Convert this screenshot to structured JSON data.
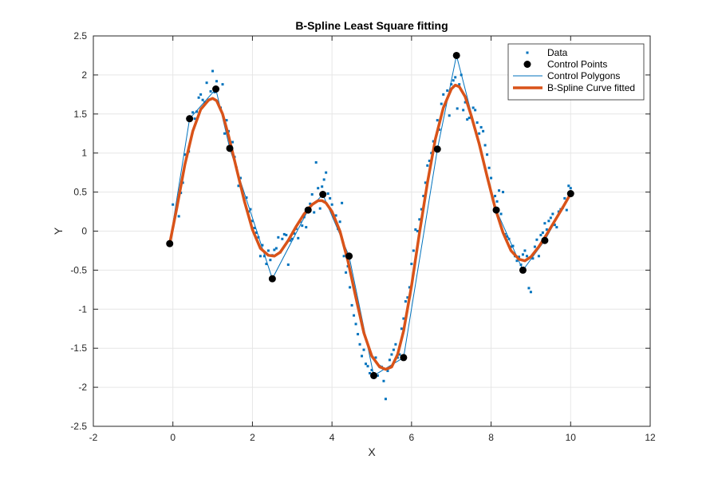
{
  "chart_data": {
    "type": "scatter",
    "title": "B-Spline Least Square fitting",
    "xlabel": "X",
    "ylabel": "Y",
    "xlim": [
      -2,
      12
    ],
    "ylim": [
      -2.5,
      2.5
    ],
    "xticks": [
      -2,
      0,
      2,
      4,
      6,
      8,
      10,
      12
    ],
    "yticks": [
      -2.5,
      -2,
      -1.5,
      -1,
      -0.5,
      0,
      0.5,
      1,
      1.5,
      2,
      2.5
    ],
    "xtick_labels": [
      "-2",
      "0",
      "2",
      "4",
      "6",
      "8",
      "10",
      "12"
    ],
    "ytick_labels": [
      "-2.5",
      "-2",
      "-1.5",
      "-1",
      "-0.5",
      "0",
      "0.5",
      "1",
      "1.5",
      "2",
      "2.5"
    ],
    "grid": true,
    "legend_position": "top-right",
    "colors": {
      "data": "#0072BD",
      "control_points": "#000000",
      "control_polygon": "#0072BD",
      "fitted_curve": "#D95319",
      "grid": "#e6e6e6",
      "axes": "#262626"
    },
    "series": [
      {
        "name": "Data",
        "kind": "scatter",
        "points": [
          [
            0.0,
            0.34
          ],
          [
            0.1,
            0.33
          ],
          [
            0.15,
            0.19
          ],
          [
            0.2,
            0.49
          ],
          [
            0.25,
            0.62
          ],
          [
            0.3,
            0.98
          ],
          [
            0.35,
            0.96
          ],
          [
            0.4,
            1.02
          ],
          [
            0.45,
            1.45
          ],
          [
            0.5,
            1.52
          ],
          [
            0.55,
            1.44
          ],
          [
            0.6,
            1.53
          ],
          [
            0.65,
            1.71
          ],
          [
            0.7,
            1.75
          ],
          [
            0.75,
            1.68
          ],
          [
            0.8,
            1.65
          ],
          [
            0.85,
            1.9
          ],
          [
            0.9,
            1.68
          ],
          [
            0.95,
            1.79
          ],
          [
            1.0,
            2.05
          ],
          [
            1.05,
            1.78
          ],
          [
            1.1,
            1.92
          ],
          [
            1.15,
            1.62
          ],
          [
            1.2,
            1.58
          ],
          [
            1.25,
            1.88
          ],
          [
            1.3,
            1.25
          ],
          [
            1.35,
            1.42
          ],
          [
            1.4,
            1.28
          ],
          [
            1.45,
            1.04
          ],
          [
            1.5,
            1.14
          ],
          [
            1.55,
            0.95
          ],
          [
            1.6,
            0.81
          ],
          [
            1.65,
            0.58
          ],
          [
            1.7,
            0.68
          ],
          [
            1.75,
            0.49
          ],
          [
            1.8,
            0.39
          ],
          [
            1.85,
            0.43
          ],
          [
            1.9,
            0.25
          ],
          [
            1.95,
            0.28
          ],
          [
            2.0,
            0.13
          ],
          [
            2.05,
            0.04
          ],
          [
            2.1,
            -0.02
          ],
          [
            2.15,
            -0.08
          ],
          [
            2.2,
            -0.32
          ],
          [
            2.25,
            -0.18
          ],
          [
            2.3,
            -0.32
          ],
          [
            2.35,
            -0.42
          ],
          [
            2.4,
            -0.25
          ],
          [
            2.45,
            -0.37
          ],
          [
            2.5,
            -0.31
          ],
          [
            2.55,
            -0.24
          ],
          [
            2.6,
            -0.22
          ],
          [
            2.65,
            -0.08
          ],
          [
            2.7,
            -0.27
          ],
          [
            2.75,
            -0.1
          ],
          [
            2.8,
            -0.04
          ],
          [
            2.85,
            -0.05
          ],
          [
            2.9,
            -0.43
          ],
          [
            2.95,
            -0.12
          ],
          [
            3.0,
            -0.1
          ],
          [
            3.05,
            -0.03
          ],
          [
            3.1,
            0.03
          ],
          [
            3.15,
            -0.09
          ],
          [
            3.2,
            0.12
          ],
          [
            3.25,
            0.07
          ],
          [
            3.3,
            0.18
          ],
          [
            3.35,
            0.05
          ],
          [
            3.4,
            0.29
          ],
          [
            3.45,
            0.35
          ],
          [
            3.5,
            0.47
          ],
          [
            3.55,
            0.24
          ],
          [
            3.6,
            0.88
          ],
          [
            3.65,
            0.55
          ],
          [
            3.7,
            0.29
          ],
          [
            3.75,
            0.57
          ],
          [
            3.8,
            0.66
          ],
          [
            3.85,
            0.75
          ],
          [
            3.9,
            0.48
          ],
          [
            3.95,
            0.42
          ],
          [
            4.0,
            0.34
          ],
          [
            4.05,
            0.17
          ],
          [
            4.1,
            0.2
          ],
          [
            4.15,
            0.03
          ],
          [
            4.2,
            0.12
          ],
          [
            4.25,
            0.36
          ],
          [
            4.3,
            -0.32
          ],
          [
            4.35,
            -0.53
          ],
          [
            4.4,
            -0.45
          ],
          [
            4.45,
            -0.72
          ],
          [
            4.5,
            -0.95
          ],
          [
            4.55,
            -1.08
          ],
          [
            4.6,
            -1.19
          ],
          [
            4.65,
            -1.32
          ],
          [
            4.7,
            -1.45
          ],
          [
            4.75,
            -1.6
          ],
          [
            4.8,
            -1.52
          ],
          [
            4.85,
            -1.7
          ],
          [
            4.9,
            -1.73
          ],
          [
            4.95,
            -1.82
          ],
          [
            5.0,
            -1.78
          ],
          [
            5.05,
            -1.88
          ],
          [
            5.1,
            -1.62
          ],
          [
            5.15,
            -1.85
          ],
          [
            5.2,
            -1.73
          ],
          [
            5.25,
            -1.74
          ],
          [
            5.3,
            -1.92
          ],
          [
            5.35,
            -2.15
          ],
          [
            5.4,
            -1.79
          ],
          [
            5.45,
            -1.65
          ],
          [
            5.5,
            -1.58
          ],
          [
            5.55,
            -1.52
          ],
          [
            5.6,
            -1.45
          ],
          [
            5.65,
            -1.62
          ],
          [
            5.7,
            -1.58
          ],
          [
            5.75,
            -1.25
          ],
          [
            5.8,
            -1.12
          ],
          [
            5.85,
            -0.9
          ],
          [
            5.9,
            -0.85
          ],
          [
            5.95,
            -0.72
          ],
          [
            6.0,
            -0.42
          ],
          [
            6.05,
            -0.25
          ],
          [
            6.1,
            0.02
          ],
          [
            6.15,
            0.0
          ],
          [
            6.2,
            0.15
          ],
          [
            6.25,
            0.28
          ],
          [
            6.3,
            0.45
          ],
          [
            6.35,
            0.62
          ],
          [
            6.4,
            0.84
          ],
          [
            6.45,
            0.9
          ],
          [
            6.5,
            1.0
          ],
          [
            6.55,
            1.15
          ],
          [
            6.6,
            1.05
          ],
          [
            6.65,
            1.42
          ],
          [
            6.7,
            1.3
          ],
          [
            6.75,
            1.63
          ],
          [
            6.8,
            1.75
          ],
          [
            6.85,
            1.62
          ],
          [
            6.9,
            1.8
          ],
          [
            6.95,
            1.48
          ],
          [
            7.0,
            1.88
          ],
          [
            7.05,
            1.93
          ],
          [
            7.1,
            1.97
          ],
          [
            7.15,
            1.57
          ],
          [
            7.2,
            1.88
          ],
          [
            7.25,
            2.0
          ],
          [
            7.3,
            1.55
          ],
          [
            7.35,
            1.65
          ],
          [
            7.4,
            1.43
          ],
          [
            7.45,
            1.45
          ],
          [
            7.5,
            1.46
          ],
          [
            7.55,
            1.58
          ],
          [
            7.6,
            1.55
          ],
          [
            7.65,
            1.39
          ],
          [
            7.7,
            1.25
          ],
          [
            7.75,
            1.33
          ],
          [
            7.8,
            1.28
          ],
          [
            7.85,
            1.1
          ],
          [
            7.9,
            0.98
          ],
          [
            7.95,
            0.81
          ],
          [
            8.0,
            0.68
          ],
          [
            8.05,
            0.42
          ],
          [
            8.1,
            0.45
          ],
          [
            8.15,
            0.38
          ],
          [
            8.2,
            0.52
          ],
          [
            8.25,
            0.22
          ],
          [
            8.3,
            0.5
          ],
          [
            8.35,
            -0.04
          ],
          [
            8.4,
            -0.07
          ],
          [
            8.45,
            -0.1
          ],
          [
            8.5,
            -0.2
          ],
          [
            8.55,
            -0.19
          ],
          [
            8.6,
            -0.32
          ],
          [
            8.65,
            -0.38
          ],
          [
            8.7,
            -0.33
          ],
          [
            8.75,
            -0.43
          ],
          [
            8.8,
            -0.3
          ],
          [
            8.85,
            -0.25
          ],
          [
            8.9,
            -0.32
          ],
          [
            8.95,
            -0.73
          ],
          [
            9.0,
            -0.78
          ],
          [
            9.05,
            -0.35
          ],
          [
            9.1,
            -0.2
          ],
          [
            9.15,
            -0.11
          ],
          [
            9.2,
            -0.32
          ],
          [
            9.25,
            -0.05
          ],
          [
            9.3,
            -0.02
          ],
          [
            9.35,
            0.1
          ],
          [
            9.4,
            0.02
          ],
          [
            9.45,
            0.13
          ],
          [
            9.5,
            0.17
          ],
          [
            9.55,
            0.22
          ],
          [
            9.6,
            0.08
          ],
          [
            9.65,
            0.05
          ],
          [
            9.7,
            0.25
          ],
          [
            9.75,
            0.28
          ],
          [
            9.8,
            0.3
          ],
          [
            9.85,
            0.42
          ],
          [
            9.9,
            0.27
          ],
          [
            9.95,
            0.58
          ],
          [
            10.0,
            0.55
          ]
        ]
      },
      {
        "name": "Control Points",
        "kind": "markers",
        "points": [
          [
            -0.08,
            -0.16
          ],
          [
            0.42,
            1.44
          ],
          [
            1.08,
            1.82
          ],
          [
            1.43,
            1.06
          ],
          [
            2.5,
            -0.61
          ],
          [
            3.4,
            0.27
          ],
          [
            3.77,
            0.47
          ],
          [
            4.43,
            -0.32
          ],
          [
            5.05,
            -1.85
          ],
          [
            5.8,
            -1.62
          ],
          [
            6.65,
            1.05
          ],
          [
            7.13,
            2.25
          ],
          [
            8.13,
            0.27
          ],
          [
            8.8,
            -0.5
          ],
          [
            9.35,
            -0.12
          ],
          [
            10.0,
            0.48
          ]
        ]
      },
      {
        "name": "Control Polygons",
        "kind": "line",
        "points": [
          [
            -0.08,
            -0.16
          ],
          [
            0.42,
            1.44
          ],
          [
            1.08,
            1.82
          ],
          [
            1.43,
            1.06
          ],
          [
            2.5,
            -0.61
          ],
          [
            3.4,
            0.27
          ],
          [
            3.77,
            0.47
          ],
          [
            4.43,
            -0.32
          ],
          [
            5.05,
            -1.85
          ],
          [
            5.8,
            -1.62
          ],
          [
            6.65,
            1.05
          ],
          [
            7.13,
            2.25
          ],
          [
            8.13,
            0.27
          ],
          [
            8.8,
            -0.5
          ],
          [
            9.35,
            -0.12
          ],
          [
            10.0,
            0.48
          ]
        ]
      },
      {
        "name": "B-Spline Curve fitted",
        "kind": "curve",
        "points": [
          [
            -0.08,
            -0.16
          ],
          [
            0.1,
            0.3
          ],
          [
            0.3,
            0.85
          ],
          [
            0.5,
            1.28
          ],
          [
            0.7,
            1.56
          ],
          [
            0.9,
            1.68
          ],
          [
            1.0,
            1.7
          ],
          [
            1.1,
            1.67
          ],
          [
            1.25,
            1.5
          ],
          [
            1.4,
            1.22
          ],
          [
            1.6,
            0.8
          ],
          [
            1.8,
            0.38
          ],
          [
            2.0,
            0.02
          ],
          [
            2.2,
            -0.22
          ],
          [
            2.4,
            -0.31
          ],
          [
            2.55,
            -0.32
          ],
          [
            2.7,
            -0.27
          ],
          [
            2.9,
            -0.12
          ],
          [
            3.1,
            0.06
          ],
          [
            3.3,
            0.22
          ],
          [
            3.5,
            0.34
          ],
          [
            3.65,
            0.39
          ],
          [
            3.75,
            0.39
          ],
          [
            3.85,
            0.36
          ],
          [
            4.0,
            0.25
          ],
          [
            4.2,
            0.0
          ],
          [
            4.4,
            -0.38
          ],
          [
            4.6,
            -0.85
          ],
          [
            4.8,
            -1.3
          ],
          [
            5.0,
            -1.6
          ],
          [
            5.2,
            -1.74
          ],
          [
            5.35,
            -1.77
          ],
          [
            5.5,
            -1.74
          ],
          [
            5.65,
            -1.58
          ],
          [
            5.8,
            -1.28
          ],
          [
            6.0,
            -0.7
          ],
          [
            6.2,
            -0.02
          ],
          [
            6.4,
            0.62
          ],
          [
            6.6,
            1.18
          ],
          [
            6.8,
            1.58
          ],
          [
            7.0,
            1.82
          ],
          [
            7.1,
            1.87
          ],
          [
            7.2,
            1.85
          ],
          [
            7.35,
            1.72
          ],
          [
            7.5,
            1.48
          ],
          [
            7.7,
            1.12
          ],
          [
            7.9,
            0.7
          ],
          [
            8.1,
            0.3
          ],
          [
            8.3,
            -0.02
          ],
          [
            8.5,
            -0.25
          ],
          [
            8.7,
            -0.36
          ],
          [
            8.85,
            -0.38
          ],
          [
            9.0,
            -0.33
          ],
          [
            9.2,
            -0.2
          ],
          [
            9.4,
            -0.04
          ],
          [
            9.6,
            0.13
          ],
          [
            9.8,
            0.3
          ],
          [
            10.0,
            0.48
          ]
        ]
      }
    ]
  }
}
